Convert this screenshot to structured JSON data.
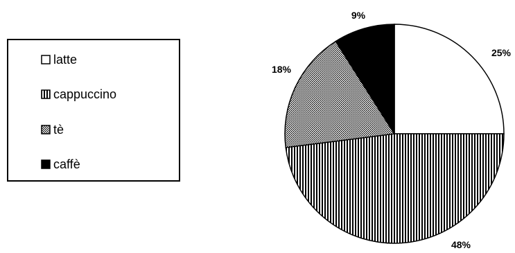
{
  "chart_data": {
    "type": "pie",
    "legend_position": "left",
    "slices": [
      {
        "label": "latte",
        "value": 25,
        "display": "25%",
        "pattern": "white"
      },
      {
        "label": "cappuccino",
        "value": 48,
        "display": "48%",
        "pattern": "vertical-stripes"
      },
      {
        "label": "tè",
        "value": 18,
        "display": "18%",
        "pattern": "dots"
      },
      {
        "label": "caffè",
        "value": 9,
        "display": "9%",
        "pattern": "black"
      }
    ]
  }
}
